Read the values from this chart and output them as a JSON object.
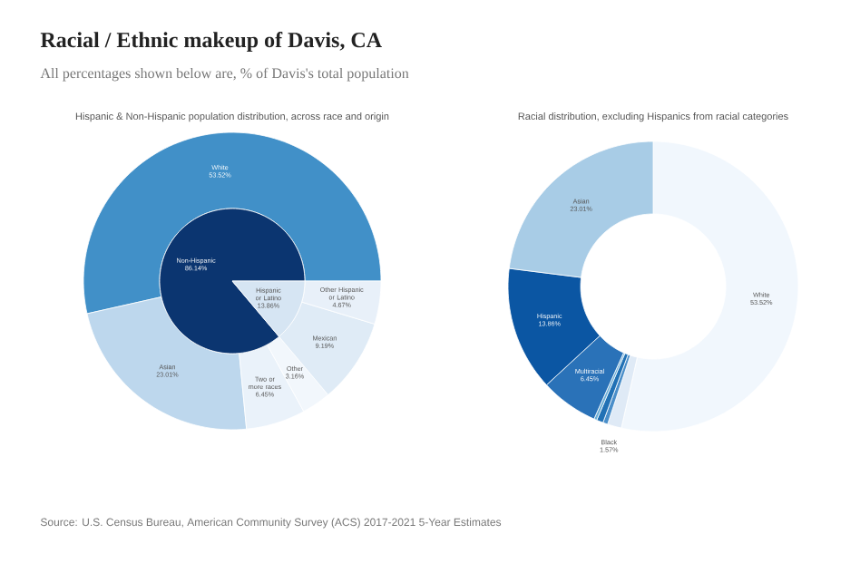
{
  "chart_data": [
    {
      "type": "other",
      "title": "Racial / Ethnic makeup of Davis, CA",
      "subtitle": "All percentages shown below are, % of Davis's total population",
      "annotations": [
        "Source: U.S. Census Bureau, American Community Survey (ACS) 2017-2021 5-Year Estimates"
      ]
    },
    {
      "type": "donut",
      "title": "Hispanic & Non-Hispanic population distribution, across race and origin",
      "categories": [
        "White",
        "Asian",
        "Two or more races",
        "Other",
        "Mexican",
        "Other Hispanic or Latino"
      ],
      "values": [
        53.52,
        23.01,
        6.45,
        3.16,
        9.19,
        4.67
      ],
      "colors": [
        "#4190c8",
        "#bdd7ed",
        "#eaf2fa",
        "#f2f7fc",
        "#dfebf6",
        "#e8f0f9"
      ],
      "value_labels": [
        "53.52%",
        "23.01%",
        "6.45%",
        "3.16%",
        "9.19%",
        "4.67%"
      ]
    },
    {
      "type": "pie",
      "categories": [
        "Non-Hispanic",
        "Hispanic or Latino"
      ],
      "values": [
        86.14,
        13.86
      ],
      "colors": [
        "#0b3570",
        "#d6e5f3"
      ],
      "value_labels": [
        "86.14%",
        "13.86%"
      ]
    },
    {
      "type": "donut",
      "title": "Racial distribution, excluding Hispanics from racial categories",
      "categories": [
        "White",
        "Black",
        null,
        null,
        null,
        "Multiracial",
        "Hispanic",
        "Asian"
      ],
      "values": [
        53.52,
        1.57,
        0.53,
        0.74,
        0.32,
        6.45,
        13.86,
        23.01
      ],
      "colors": [
        "#f1f7fd",
        "#dfeaf6",
        "#4a8ec9",
        "#2171b5",
        "#6baed6",
        "#2a72b8",
        "#0b56a3",
        "#a8cce6"
      ],
      "value_labels": [
        "53.52%",
        "1.57%",
        null,
        null,
        null,
        "6.45%",
        "13.86%",
        "23.01%"
      ]
    }
  ]
}
